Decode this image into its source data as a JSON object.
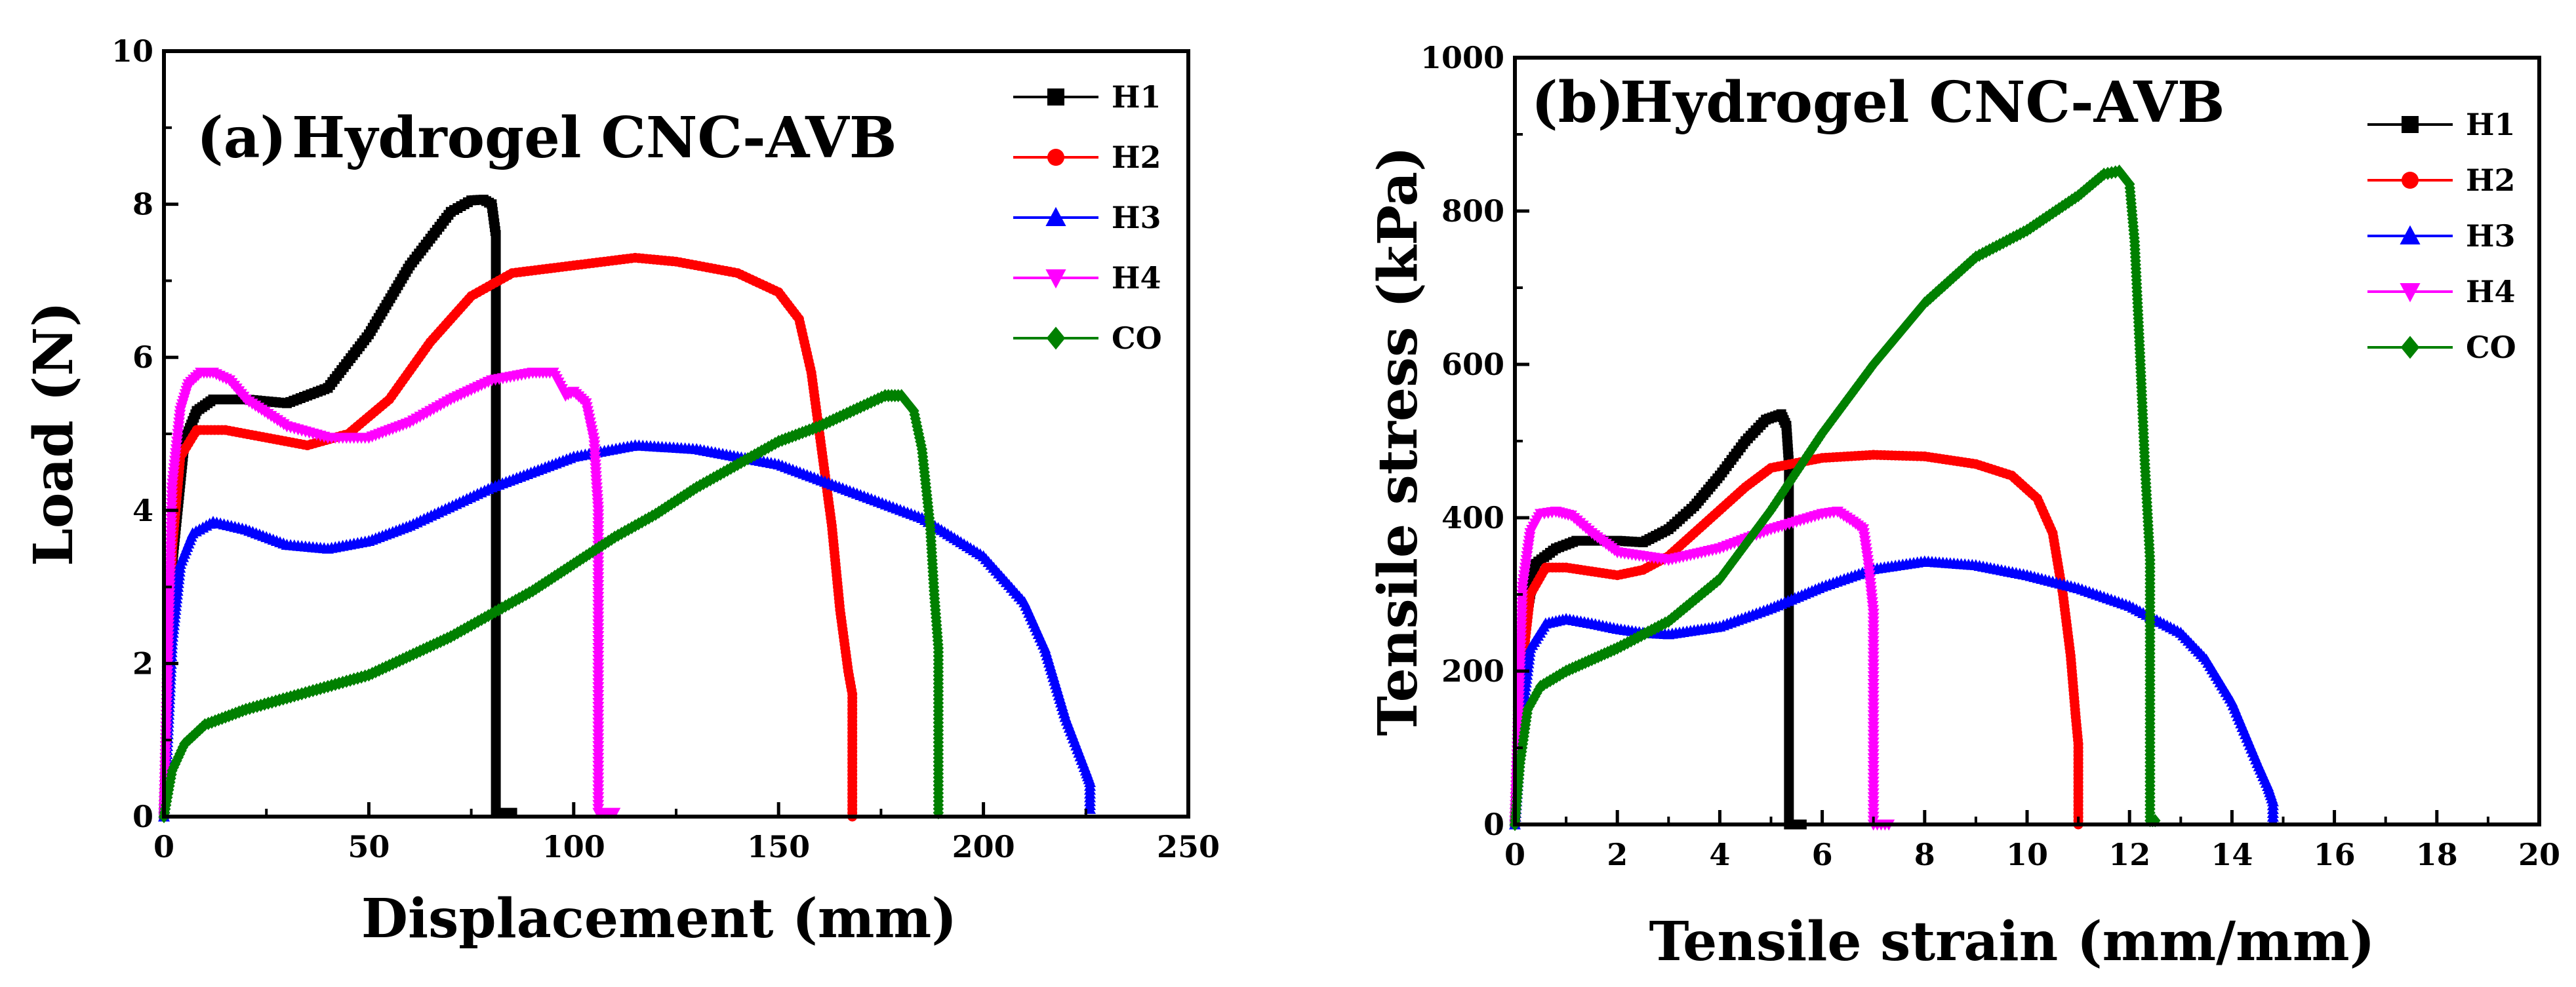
{
  "chart_data": [
    {
      "type": "line",
      "panel_tag": "(a)",
      "title": "Hydrogel CNC-AVB",
      "xlabel": "Displacement (mm)",
      "ylabel": "Load (N)",
      "xlim": [
        0,
        250
      ],
      "ylim": [
        0,
        10
      ],
      "xticks": [
        0,
        50,
        100,
        150,
        200,
        250
      ],
      "yticks": [
        0,
        2,
        4,
        6,
        8,
        10
      ],
      "xtick_labels": [
        "0",
        "50",
        "100",
        "150",
        "200",
        "250"
      ],
      "ytick_labels": [
        "0",
        "2",
        "4",
        "6",
        "8",
        "10"
      ],
      "legend_position": "top-right",
      "series": [
        {
          "name": "H1",
          "color": "#000000",
          "marker": "square",
          "x": [
            0,
            2,
            5,
            8,
            12,
            20,
            30,
            40,
            50,
            60,
            70,
            75,
            78,
            80,
            81,
            81,
            82,
            84,
            85
          ],
          "y": [
            0,
            3.3,
            4.9,
            5.3,
            5.45,
            5.45,
            5.4,
            5.6,
            6.3,
            7.2,
            7.9,
            8.05,
            8.06,
            8.0,
            7.6,
            0.05,
            0.05,
            0.05,
            0.05
          ]
        },
        {
          "name": "H2",
          "color": "#ff0000",
          "marker": "circle",
          "x": [
            0,
            2,
            4,
            8,
            15,
            25,
            35,
            45,
            55,
            65,
            75,
            85,
            100,
            115,
            125,
            140,
            150,
            155,
            158,
            160,
            163,
            165,
            167,
            168,
            168
          ],
          "y": [
            0,
            3.5,
            4.7,
            5.05,
            5.05,
            4.95,
            4.85,
            5.0,
            5.45,
            6.2,
            6.8,
            7.1,
            7.2,
            7.3,
            7.25,
            7.1,
            6.85,
            6.5,
            5.8,
            5.0,
            3.8,
            2.7,
            1.9,
            1.6,
            0
          ]
        },
        {
          "name": "H3",
          "color": "#0000ff",
          "marker": "triangle-up",
          "x": [
            0,
            2,
            4,
            7,
            12,
            20,
            30,
            40,
            50,
            60,
            80,
            100,
            115,
            130,
            150,
            170,
            185,
            200,
            210,
            215,
            220,
            225,
            226,
            226
          ],
          "y": [
            0,
            2.3,
            3.3,
            3.7,
            3.85,
            3.75,
            3.55,
            3.5,
            3.6,
            3.8,
            4.3,
            4.7,
            4.85,
            4.8,
            4.6,
            4.2,
            3.9,
            3.4,
            2.8,
            2.2,
            1.3,
            0.6,
            0.45,
            0.1
          ]
        },
        {
          "name": "H4",
          "color": "#ff00ff",
          "marker": "triangle-down",
          "x": [
            0,
            2,
            4,
            6,
            9,
            12,
            16,
            20,
            30,
            40,
            50,
            60,
            70,
            80,
            90,
            95,
            98,
            100,
            103,
            105,
            105.5,
            106,
            106,
            110
          ],
          "y": [
            0,
            4.3,
            5.3,
            5.65,
            5.8,
            5.8,
            5.7,
            5.45,
            5.1,
            4.95,
            4.95,
            5.15,
            5.45,
            5.7,
            5.8,
            5.8,
            5.5,
            5.55,
            5.4,
            4.9,
            4.4,
            4.0,
            0.05,
            0.05
          ]
        },
        {
          "name": "CO",
          "color": "#008000",
          "marker": "diamond",
          "x": [
            0,
            2,
            5,
            10,
            20,
            30,
            40,
            50,
            60,
            70,
            80,
            90,
            100,
            110,
            120,
            130,
            140,
            150,
            160,
            170,
            176,
            180,
            183,
            185,
            187,
            188,
            189,
            189
          ],
          "y": [
            0,
            0.6,
            0.95,
            1.2,
            1.4,
            1.55,
            1.7,
            1.85,
            2.1,
            2.35,
            2.65,
            2.95,
            3.3,
            3.65,
            3.95,
            4.3,
            4.6,
            4.9,
            5.1,
            5.35,
            5.5,
            5.5,
            5.3,
            4.8,
            3.8,
            2.9,
            2.2,
            0.05
          ]
        }
      ]
    },
    {
      "type": "line",
      "panel_tag": "(b)",
      "title": "Hydrogel CNC-AVB",
      "xlabel": "Tensile strain (mm/mm)",
      "ylabel": "Tensile stress (kPa)",
      "xlim": [
        0,
        20
      ],
      "ylim": [
        0,
        1000
      ],
      "xticks": [
        0,
        2,
        4,
        6,
        8,
        10,
        12,
        14,
        16,
        18,
        20
      ],
      "yticks": [
        0,
        200,
        400,
        600,
        800,
        1000
      ],
      "xtick_labels": [
        "0",
        "2",
        "4",
        "6",
        "8",
        "10",
        "12",
        "14",
        "16",
        "18",
        "20"
      ],
      "ytick_labels": [
        "0",
        "200",
        "400",
        "600",
        "800",
        "1000"
      ],
      "legend_position": "top-right",
      "series": [
        {
          "name": "H1",
          "color": "#000000",
          "marker": "square",
          "x": [
            0,
            0.15,
            0.4,
            0.8,
            1.2,
            2,
            2.5,
            3,
            3.5,
            4,
            4.5,
            4.9,
            5.2,
            5.3,
            5.35,
            5.35,
            5.6
          ],
          "y": [
            0,
            240,
            340,
            360,
            370,
            370,
            368,
            385,
            415,
            455,
            500,
            528,
            535,
            520,
            470,
            0,
            0
          ]
        },
        {
          "name": "H2",
          "color": "#ff0000",
          "marker": "circle",
          "x": [
            0,
            0.15,
            0.3,
            0.6,
            1,
            1.5,
            2,
            2.5,
            3,
            3.5,
            4,
            4.5,
            5,
            6,
            7,
            8,
            9,
            9.7,
            10.2,
            10.5,
            10.7,
            10.85,
            10.95,
            11,
            11
          ],
          "y": [
            0,
            210,
            300,
            335,
            335,
            330,
            325,
            332,
            350,
            380,
            410,
            440,
            465,
            478,
            482,
            480,
            470,
            455,
            425,
            380,
            300,
            220,
            140,
            105,
            0
          ]
        },
        {
          "name": "H3",
          "color": "#0000ff",
          "marker": "triangle-up",
          "x": [
            0,
            0.15,
            0.3,
            0.6,
            1,
            1.5,
            2,
            2.5,
            3,
            4,
            5,
            6,
            7,
            8,
            9,
            10,
            11,
            12,
            13,
            13.5,
            14,
            14.5,
            14.7,
            14.8,
            14.8
          ],
          "y": [
            0,
            150,
            230,
            262,
            268,
            262,
            255,
            250,
            248,
            258,
            282,
            310,
            333,
            343,
            338,
            325,
            308,
            285,
            250,
            215,
            160,
            80,
            50,
            30,
            5
          ]
        },
        {
          "name": "H4",
          "color": "#ff00ff",
          "marker": "triangle-down",
          "x": [
            0,
            0.15,
            0.3,
            0.5,
            0.8,
            1.1,
            1.5,
            2,
            3,
            4,
            5,
            6,
            6.3,
            6.6,
            6.8,
            6.9,
            7,
            7,
            7.3
          ],
          "y": [
            0,
            310,
            380,
            405,
            408,
            403,
            380,
            355,
            345,
            360,
            385,
            405,
            408,
            395,
            385,
            340,
            275,
            0,
            0
          ]
        },
        {
          "name": "CO",
          "color": "#008000",
          "marker": "diamond",
          "x": [
            0,
            0.1,
            0.25,
            0.5,
            1,
            1.5,
            2,
            3,
            4,
            5,
            6,
            7,
            8,
            9,
            10,
            11,
            11.5,
            11.8,
            12,
            12.1,
            12.2,
            12.3,
            12.4,
            12.4,
            12.5
          ],
          "y": [
            0,
            80,
            150,
            180,
            200,
            215,
            230,
            265,
            320,
            410,
            510,
            600,
            680,
            740,
            775,
            820,
            848,
            852,
            835,
            760,
            620,
            470,
            345,
            5,
            5
          ]
        }
      ]
    }
  ]
}
